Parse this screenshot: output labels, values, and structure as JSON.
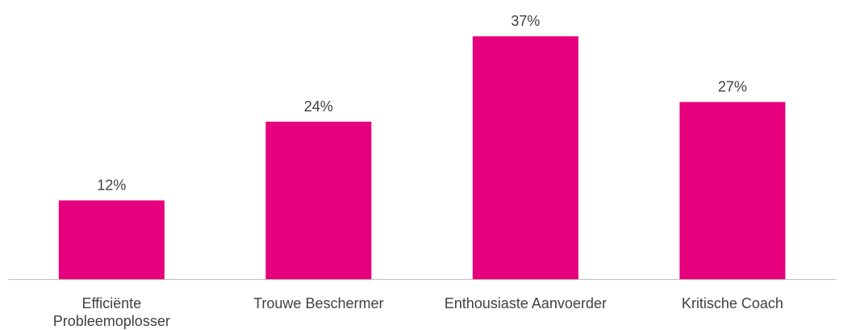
{
  "chart_data": {
    "type": "bar",
    "categories": [
      "Efficiënte Probleemoplosser",
      "Trouwe Beschermer",
      "Enthousiaste Aanvoerder",
      "Kritische Coach"
    ],
    "category_lines": [
      [
        "Efficiënte",
        "Probleemoplosser"
      ],
      [
        "Trouwe Beschermer"
      ],
      [
        "Enthousiaste Aanvoerder"
      ],
      [
        "Kritische Coach"
      ]
    ],
    "values": [
      12,
      24,
      37,
      27
    ],
    "data_labels": [
      "12%",
      "24%",
      "37%",
      "27%"
    ],
    "unit": "%",
    "title": "",
    "xlabel": "",
    "ylabel": "",
    "ylim": [
      0,
      40
    ],
    "grid": false,
    "legend": "none",
    "bar_color": "#E6007E",
    "axis_color": "#BFBFBF",
    "text_color": "#404040"
  }
}
